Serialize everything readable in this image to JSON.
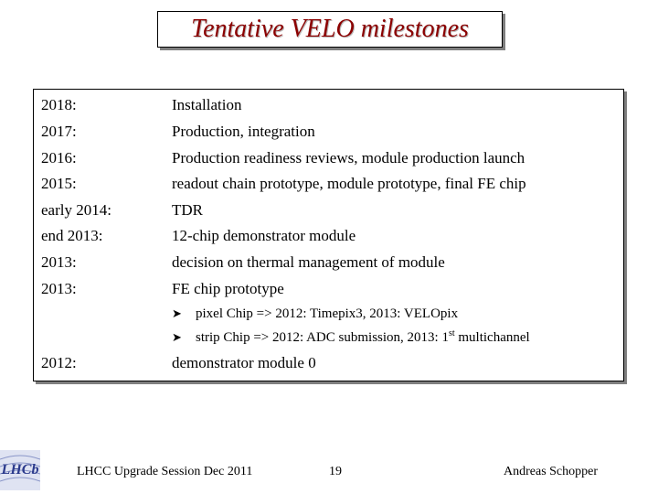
{
  "title": "Tentative VELO milestones",
  "milestones": [
    {
      "year": "2018:",
      "text": "Installation"
    },
    {
      "year": "2017:",
      "text": "Production, integration"
    },
    {
      "year": "2016:",
      "text": "Production readiness reviews, module production launch"
    },
    {
      "year": "2015:",
      "text": "readout chain prototype, module prototype, final FE chip"
    },
    {
      "year": "early 2014:",
      "text": "TDR"
    },
    {
      "year": "end 2013:",
      "text": "12-chip demonstrator module"
    },
    {
      "year": "2013:",
      "text": "decision on thermal management of module"
    },
    {
      "year": "2013:",
      "text": "FE chip prototype"
    }
  ],
  "sub_items": [
    {
      "text": "pixel Chip => 2012: Timepix3, 2013: VELOpix"
    },
    {
      "text_before": "strip Chip =>  2012: ADC submission, 2013: 1",
      "sup": "st",
      "text_after": " multichannel"
    }
  ],
  "last_milestone": {
    "year": "2012:",
    "text": "demonstrator module 0"
  },
  "footer": {
    "logo": "LHCb",
    "session": "LHCC Upgrade Session Dec 2011",
    "page": "19",
    "author": "Andreas Schopper"
  },
  "colors": {
    "title": "#8b0000",
    "logo": "#2b3a8c"
  }
}
